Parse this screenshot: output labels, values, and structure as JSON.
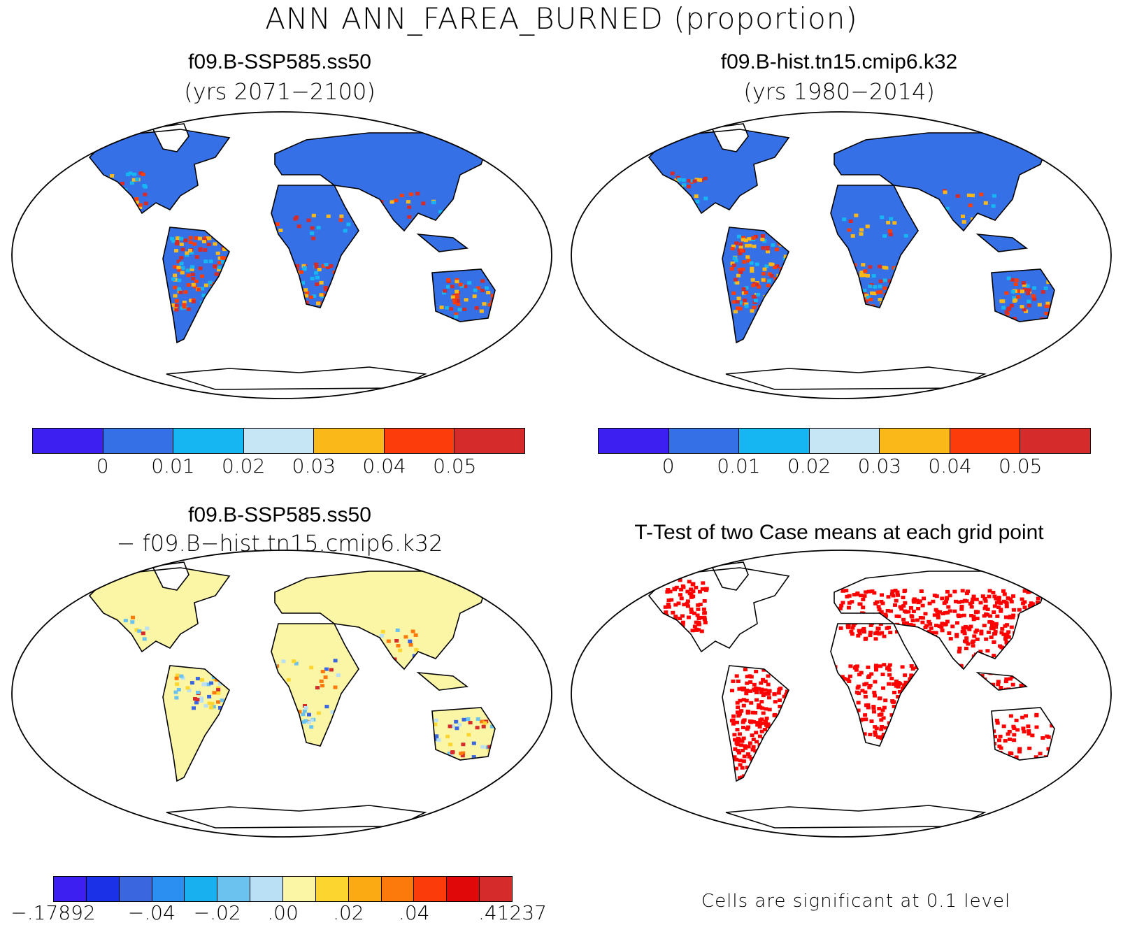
{
  "figure": {
    "title": "ANN ANN_FAREA_BURNED (proportion)"
  },
  "panels": {
    "top_left": {
      "case": "f09.B-SSP585.ss50",
      "years": "(yrs 2071−2100)"
    },
    "top_right": {
      "case": "f09.B-hist.tn15.cmip6.k32",
      "years": "(yrs 1980−2014)"
    },
    "bottom_left": {
      "case": "f09.B-SSP585.ss50",
      "minus_case": "− f09.B−hist.tn15.cmip6.k32"
    },
    "bottom_right": {
      "title": "T-Test of two Case means at each grid point",
      "note": "Cells are significant at 0.1 level"
    }
  },
  "colorbars": {
    "abs": {
      "colors": [
        "#3d1ff2",
        "#3670e6",
        "#16b6f2",
        "#c7e6f5",
        "#fbb919",
        "#fc3d0b",
        "#d52b2b"
      ],
      "ticks": [
        "0",
        "0.01",
        "0.02",
        "0.03",
        "0.04",
        "0.05"
      ]
    },
    "diff": {
      "colors": [
        "#3d1ff2",
        "#1b31e8",
        "#3a66e0",
        "#2a8ff0",
        "#19b0f0",
        "#6cc2ee",
        "#b9e0f4",
        "#fbf5a6",
        "#fcd62e",
        "#fcaa14",
        "#fc7a0c",
        "#fc3b0a",
        "#e1080a",
        "#d52b2b"
      ],
      "ticks": [
        "−.17892",
        "−.04",
        "−.02",
        ".00",
        ".02",
        ".04",
        ".41237"
      ]
    }
  },
  "legend_colors": {
    "ocean": "#ffffff",
    "land_low": "#3670e6",
    "land_high": "#d52b2b",
    "diff_neutral": "#fbf5a6",
    "significant": "#ff0000"
  }
}
